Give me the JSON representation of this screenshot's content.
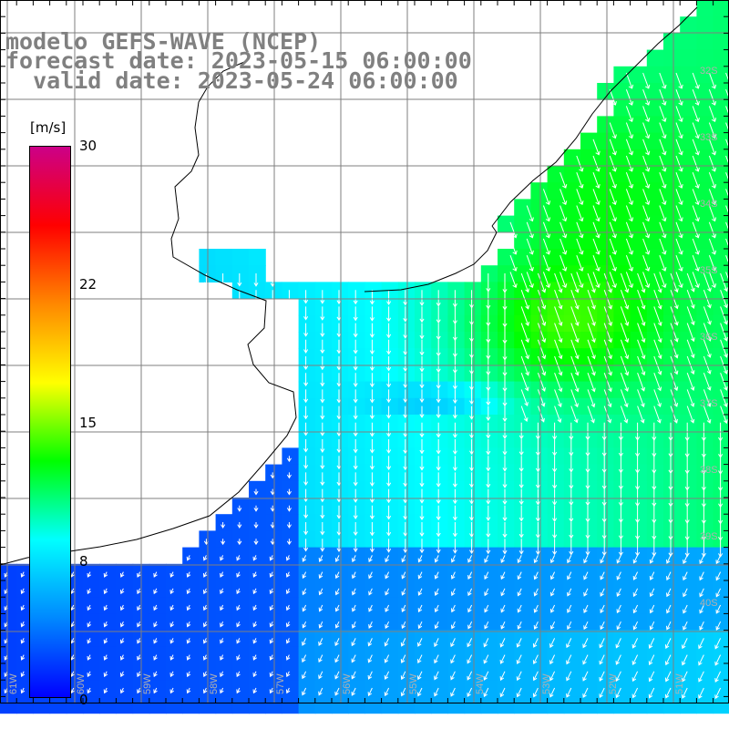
{
  "title": {
    "line1": "modelo GEFS-WAVE (NCEP)",
    "line2": "forecast date: 2023-05-15 06:00:00",
    "line3": "  valid date: 2023-05-24 06:00:00"
  },
  "colorbar": {
    "unit": "[m/s]",
    "ticks": [
      "30",
      "22",
      "15",
      "8",
      "0"
    ],
    "tick_values": [
      30,
      22,
      15,
      8,
      0
    ],
    "range": [
      0,
      30
    ],
    "colors": [
      "#0000ff",
      "#0088ff",
      "#00ffff",
      "#00ff00",
      "#ffff00",
      "#ff8800",
      "#ff0000",
      "#cc0088"
    ]
  },
  "map": {
    "lon_labels": [
      "61W",
      "60W",
      "59W",
      "58W",
      "57W",
      "56W",
      "55W",
      "54W",
      "53W",
      "52W",
      "51W"
    ],
    "lat_labels": [
      "32S",
      "33S",
      "34S",
      "35S",
      "36S",
      "37S",
      "38S",
      "39S",
      "40S"
    ],
    "grid": true,
    "ocean_color": "#ffffff",
    "land_color": "#ffffff",
    "arrow_color": "#ffffff"
  }
}
